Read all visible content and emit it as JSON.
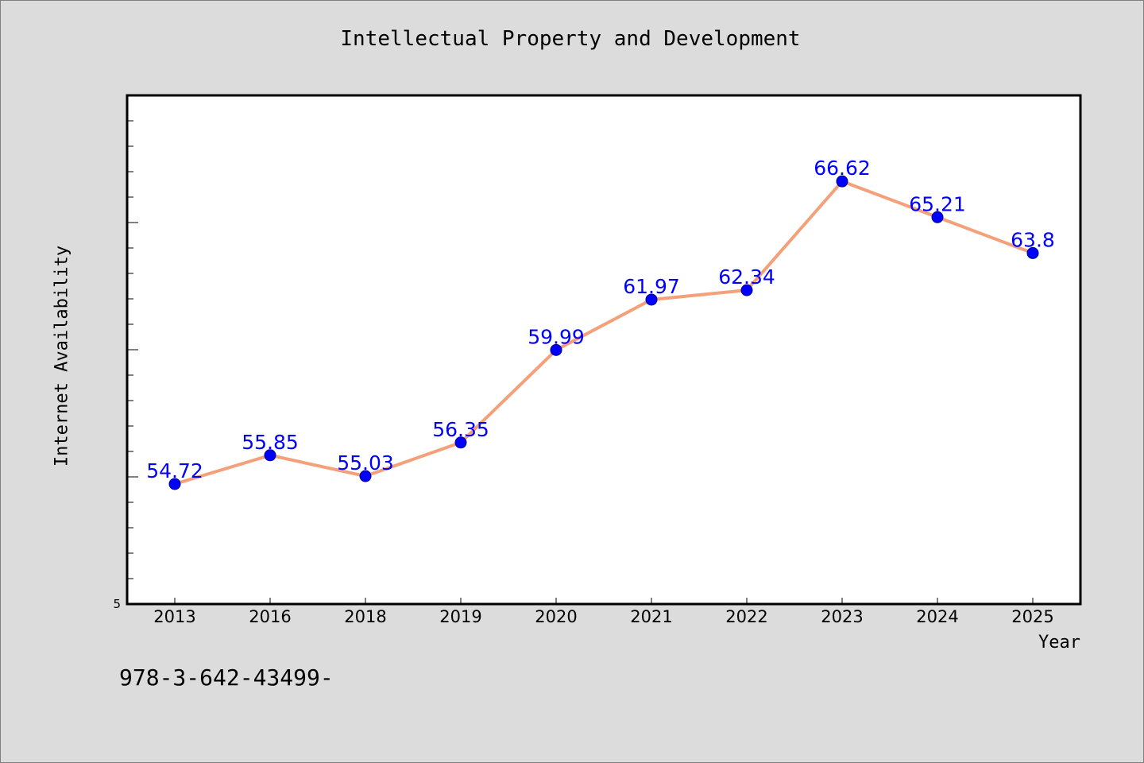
{
  "chart_data": {
    "type": "line",
    "title": "Intellectual Property and Development",
    "xlabel": "Year",
    "ylabel": "Internet Availability",
    "categories": [
      "2013",
      "2016",
      "2018",
      "2019",
      "2020",
      "2021",
      "2022",
      "2023",
      "2024",
      "2025"
    ],
    "series": [
      {
        "values": [
          54.72,
          55.85,
          55.03,
          56.35,
          59.99,
          61.97,
          62.34,
          66.62,
          65.21,
          63.8
        ],
        "labels": [
          "54.72",
          "55.85",
          "55.03",
          "56.35",
          "59.99",
          "61.97",
          "62.34",
          "66.62",
          "65.21",
          "63.8"
        ],
        "line_color": "#f4a07a",
        "marker_color": "#0000ff"
      }
    ],
    "y_tick_label": "5",
    "ylim": [
      50,
      70
    ],
    "grid": false,
    "legend": "none"
  },
  "footnote": "978-3-642-43499-"
}
